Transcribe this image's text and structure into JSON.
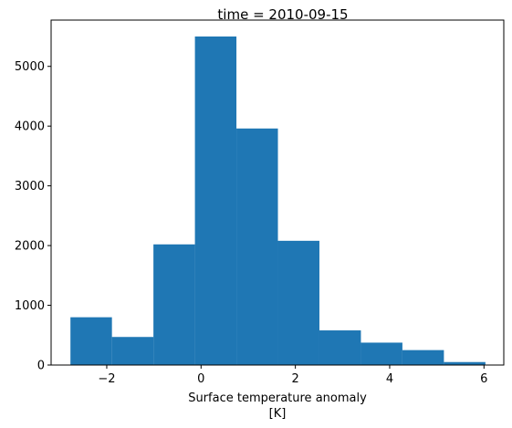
{
  "chart_data": {
    "type": "bar",
    "title": "time = 2010-09-15",
    "xlabel_lines": [
      "Surface temperature anomaly",
      "[K]"
    ],
    "ylabel": "",
    "xlim": [
      -3.18,
      6.42
    ],
    "ylim": [
      0,
      5775
    ],
    "bar_color": "#1f77b4",
    "bins": [
      {
        "x0": -2.77,
        "x1": -1.89,
        "value": 800
      },
      {
        "x0": -1.89,
        "x1": -1.01,
        "value": 470
      },
      {
        "x0": -1.01,
        "x1": -0.13,
        "value": 2020
      },
      {
        "x0": -0.13,
        "x1": 0.75,
        "value": 5500
      },
      {
        "x0": 0.75,
        "x1": 1.63,
        "value": 3960
      },
      {
        "x0": 1.63,
        "x1": 2.51,
        "value": 2080
      },
      {
        "x0": 2.51,
        "x1": 3.39,
        "value": 580
      },
      {
        "x0": 3.39,
        "x1": 4.27,
        "value": 375
      },
      {
        "x0": 4.27,
        "x1": 5.15,
        "value": 250
      },
      {
        "x0": 5.15,
        "x1": 6.03,
        "value": 50
      }
    ],
    "x_ticks": [
      {
        "value": -2,
        "label": "−2"
      },
      {
        "value": 0,
        "label": "0"
      },
      {
        "value": 2,
        "label": "2"
      },
      {
        "value": 4,
        "label": "4"
      },
      {
        "value": 6,
        "label": "6"
      }
    ],
    "y_ticks": [
      {
        "value": 0,
        "label": "0"
      },
      {
        "value": 1000,
        "label": "1000"
      },
      {
        "value": 2000,
        "label": "2000"
      },
      {
        "value": 3000,
        "label": "3000"
      },
      {
        "value": 4000,
        "label": "4000"
      },
      {
        "value": 5000,
        "label": "5000"
      }
    ],
    "grid": false,
    "legend": "none"
  }
}
